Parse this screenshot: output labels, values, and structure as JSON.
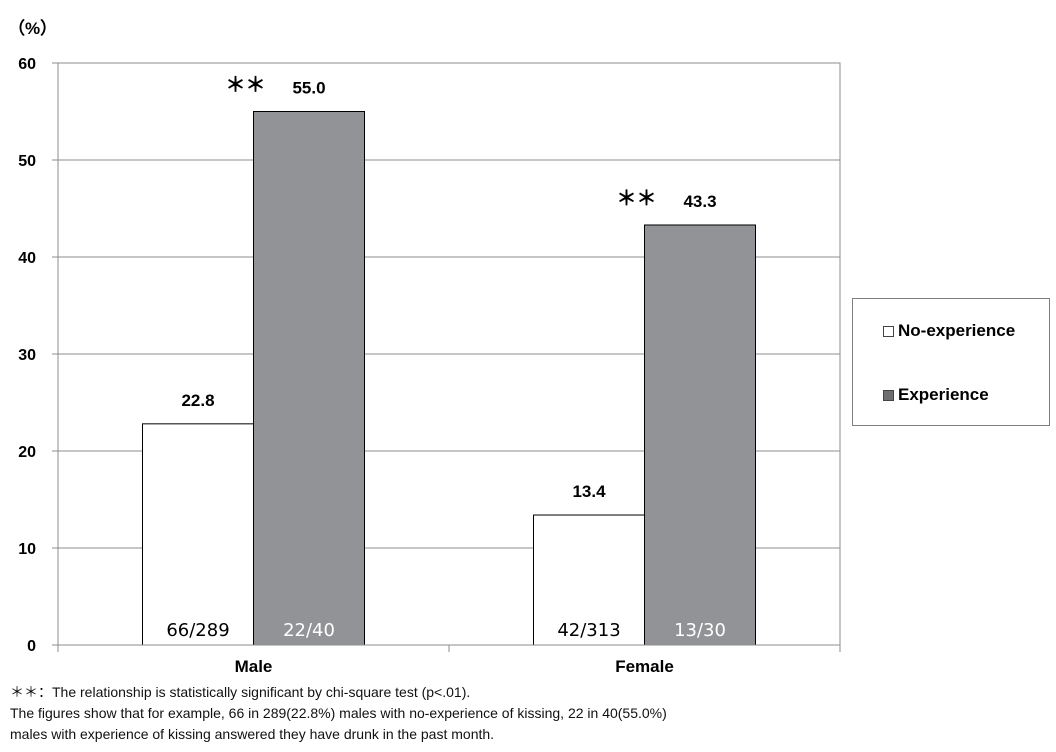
{
  "chart_data": {
    "type": "bar",
    "unit_label": "（%）",
    "categories": [
      "Male",
      "Female"
    ],
    "series": [
      {
        "name": "No-experience",
        "values": [
          22.8,
          13.4
        ],
        "value_labels": [
          "22.8",
          "13.4"
        ],
        "count_labels": [
          "66/289",
          "42/313"
        ],
        "significance": [
          "",
          ""
        ],
        "color": "#ffffff"
      },
      {
        "name": "Experience",
        "values": [
          55.0,
          43.3
        ],
        "value_labels": [
          "55.0",
          "43.3"
        ],
        "count_labels": [
          "22/40",
          "13/30"
        ],
        "significance": [
          "＊＊",
          "＊＊"
        ],
        "color": "#929396"
      }
    ],
    "yticks": [
      "0",
      "10",
      "20",
      "30",
      "40",
      "50",
      "60"
    ],
    "ylim": [
      0,
      60
    ],
    "grid": true,
    "legend_position": "right",
    "legend": [
      {
        "symbol": "□",
        "label": "No-experience"
      },
      {
        "symbol": "■",
        "label": "Experience"
      }
    ]
  },
  "footnotes": [
    "＊＊：The relationship is statistically significant by chi-square test (p<.01).",
    "The figures show that for example, 66 in 289(22.8%) males with no-experience of kissing, 22 in 40(55.0%)",
    "males with experience of kissing answered they have drunk in the past month."
  ]
}
